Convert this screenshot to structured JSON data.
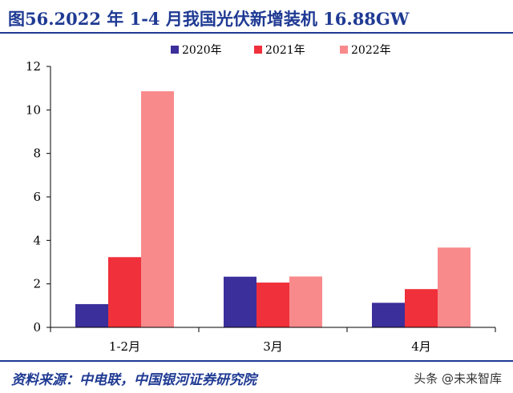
{
  "title": "图56.2022 年 1-4 月我国光伏新增装机 16.88GW",
  "source": "资料来源：中电联，中国银河证券研究院",
  "watermark": "头条 @未来智库",
  "chart_data": {
    "type": "bar",
    "categories": [
      "1-2月",
      "3月",
      "4月"
    ],
    "series": [
      {
        "name": "2020年",
        "color": "#3b2f9b",
        "values": [
          1.07,
          2.33,
          1.13
        ]
      },
      {
        "name": "2021年",
        "color": "#f0303a",
        "values": [
          3.23,
          2.06,
          1.76
        ]
      },
      {
        "name": "2022年",
        "color": "#f98a8c",
        "values": [
          10.86,
          2.34,
          3.67
        ]
      }
    ],
    "yticks": [
      0,
      2,
      4,
      6,
      8,
      10,
      12
    ],
    "ylim": [
      0,
      12
    ],
    "grid": false,
    "legend_position": "top-right"
  }
}
